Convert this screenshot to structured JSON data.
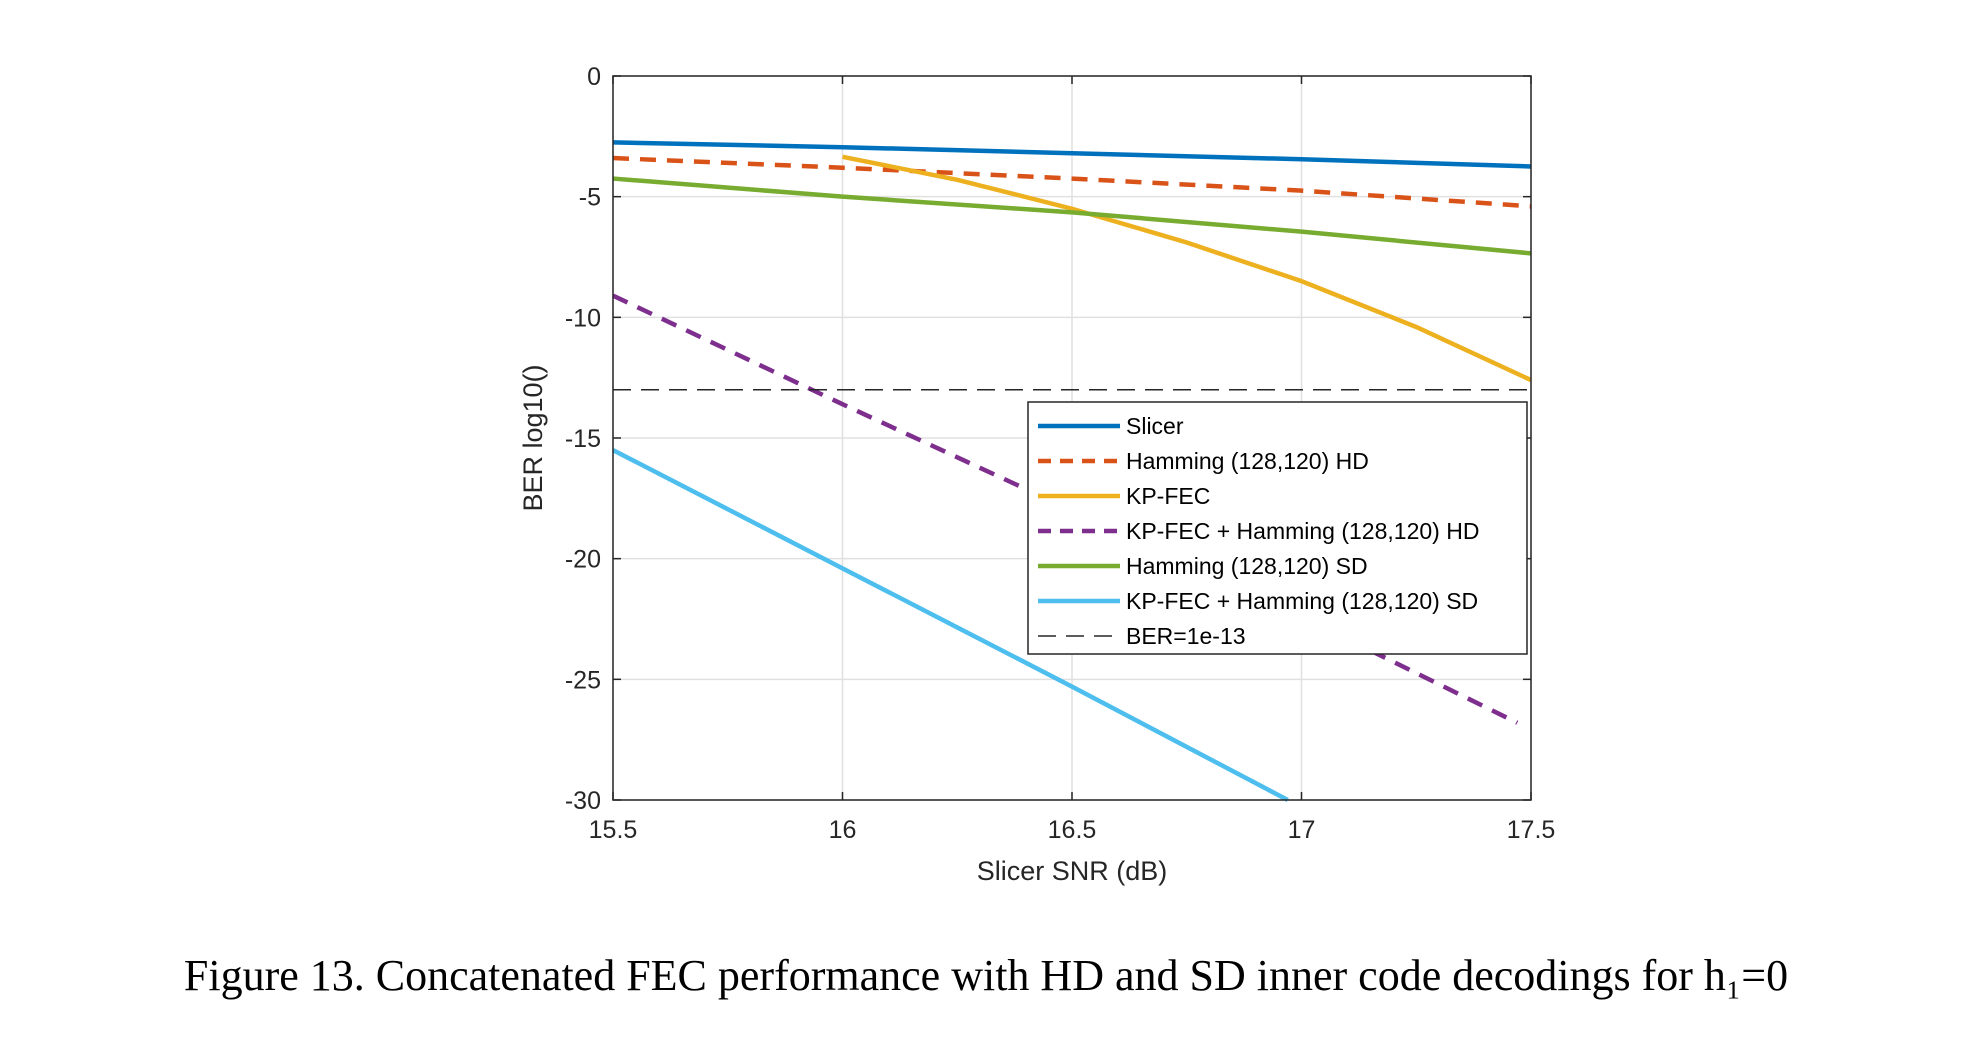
{
  "chart_data": {
    "type": "line",
    "title": "",
    "xlabel": "Slicer SNR (dB)",
    "ylabel": "BER log10()",
    "xlim": [
      15.5,
      17.5
    ],
    "ylim": [
      -30,
      0
    ],
    "xticks": [
      "15.5",
      "16",
      "16.5",
      "17",
      "17.5"
    ],
    "yticks": [
      "0",
      "-5",
      "-10",
      "-15",
      "-20",
      "-25",
      "-30"
    ],
    "grid": true,
    "legend_position": "center-right",
    "series": [
      {
        "name": "Slicer",
        "color": "#0072BD",
        "dash": "solid",
        "x": [
          15.5,
          16,
          16.5,
          17,
          17.5
        ],
        "y": [
          -2.75,
          -2.95,
          -3.2,
          -3.45,
          -3.75
        ]
      },
      {
        "name": "Hamming (128,120) HD",
        "color": "#D95319",
        "dash": "dashed",
        "x": [
          15.5,
          16,
          16.5,
          17,
          17.5
        ],
        "y": [
          -3.4,
          -3.8,
          -4.25,
          -4.75,
          -5.4
        ]
      },
      {
        "name": "KP-FEC",
        "color": "#EDB120",
        "dash": "solid",
        "x": [
          16,
          16.25,
          16.5,
          16.75,
          17,
          17.25,
          17.5
        ],
        "y": [
          -3.35,
          -4.3,
          -5.5,
          -6.9,
          -8.5,
          -10.4,
          -12.6
        ]
      },
      {
        "name": "KP-FEC + Hamming (128,120) HD",
        "color": "#7E2F8E",
        "dash": "dashed",
        "x": [
          15.5,
          16,
          16.5,
          17,
          17.47
        ],
        "y": [
          -9.1,
          -13.6,
          -18.0,
          -22.4,
          -26.8
        ]
      },
      {
        "name": "Hamming (128,120) SD",
        "color": "#77AC30",
        "dash": "solid",
        "x": [
          15.5,
          16,
          16.5,
          17,
          17.5
        ],
        "y": [
          -4.25,
          -5.0,
          -5.65,
          -6.45,
          -7.35
        ]
      },
      {
        "name": "KP-FEC + Hamming (128,120) SD",
        "color": "#4DBEEE",
        "dash": "solid",
        "x": [
          15.5,
          16,
          16.5,
          16.97
        ],
        "y": [
          -15.5,
          -20.4,
          -25.3,
          -30
        ]
      },
      {
        "name": "BER=1e-13",
        "color": "#262626",
        "dash": "thin-dashed",
        "x": [
          15.5,
          17.5
        ],
        "y": [
          -13,
          -13
        ]
      }
    ]
  },
  "caption": "Figure 13. Concatenated FEC performance with HD and SD inner code decodings for h₁=0"
}
